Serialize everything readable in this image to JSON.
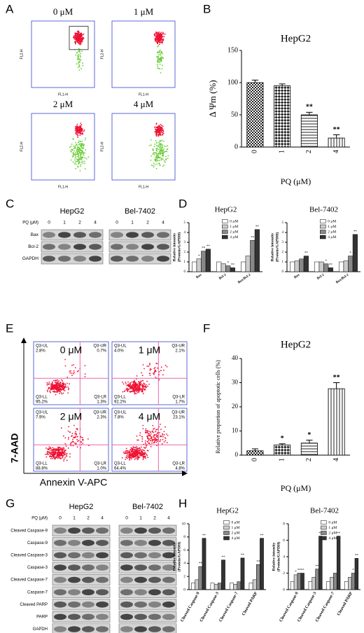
{
  "panel_labels": [
    "A",
    "B",
    "C",
    "D",
    "E",
    "F",
    "G",
    "H"
  ],
  "flow_a": {
    "doses": [
      "0 μM",
      "1 μM",
      "2 μM",
      "4 μM"
    ],
    "y_axis": "FL2-H",
    "x_axis": "FL1-H"
  },
  "blot_c": {
    "groups": [
      "HepG2",
      "Bel-7402"
    ],
    "dose_label": "PQ (μM)",
    "doses": [
      "0",
      "1",
      "2",
      "4",
      "0",
      "1",
      "2",
      "4"
    ],
    "rows": [
      "Bax",
      "Bcl-2",
      "GAPDH"
    ]
  },
  "flow_e": {
    "doses": [
      "0 μM",
      "1 μM",
      "2 μM",
      "4 μM"
    ],
    "y_axis": "7-AAD",
    "x_axis": "Annexin V-APC",
    "quadrants": [
      "Q3-UL",
      "Q3-UR",
      "Q3-LL",
      "Q3-LR"
    ],
    "percents": [
      [
        "2.8%",
        "0.7%",
        "95.2%",
        "1.3%"
      ],
      [
        "4.0%",
        "2.1%",
        "92.2%",
        "1.7%"
      ],
      [
        "7.9%",
        "2.3%",
        "88.8%",
        "1.0%"
      ],
      [
        "7.8%",
        "23.1%",
        "64.4%",
        "4.8%"
      ]
    ]
  },
  "blot_g": {
    "groups": [
      "HepG2",
      "Bel-7402"
    ],
    "dose_label": "PQ (μM)",
    "doses": [
      "0",
      "1",
      "2",
      "4",
      "0",
      "1",
      "2",
      "4"
    ],
    "rows": [
      "Cleaved Caspase-9",
      "Caspase-9",
      "Cleaved Caspase-3",
      "Caspase-3",
      "Cleaved Caspase-7",
      "Caspase-7",
      "Cleaved PARP",
      "PARP",
      "GAPDH"
    ]
  },
  "chart_data": [
    {
      "type": "bar",
      "title": "HepG2",
      "y_label": [
        "Δ Ψm (%)"
      ],
      "x_label": "PQ (μM)",
      "categories": [
        "0",
        "1",
        "2",
        "4"
      ],
      "values": [
        100,
        95,
        50,
        14
      ],
      "errors": [
        4,
        3,
        4,
        5
      ],
      "annotations": [
        null,
        null,
        "**",
        "**"
      ],
      "ylim": [
        0,
        150
      ],
      "yticks": [
        0,
        50,
        100,
        150
      ]
    },
    {
      "type": "bar",
      "title": "HepG2",
      "y_label": [
        "Relative intensity",
        "(Protein/GAPDH)"
      ],
      "categories": [
        "Bax",
        "Bcl-2",
        "Bax/Bcl-2"
      ],
      "ylim": [
        0,
        5
      ],
      "yticks": [
        0,
        1,
        2,
        3,
        4,
        5
      ],
      "series": [
        {
          "name": "0 μM",
          "color": "#ffffff",
          "values": [
            1,
            1,
            1
          ],
          "annotations": [
            null,
            null,
            null
          ]
        },
        {
          "name": "1 μM",
          "color": "#cccccc",
          "values": [
            1.3,
            0.8,
            1.6
          ],
          "annotations": [
            "*",
            null,
            null
          ]
        },
        {
          "name": "2 μM",
          "color": "#888888",
          "values": [
            2.1,
            0.6,
            3.2
          ],
          "annotations": [
            "**",
            "*",
            "**"
          ]
        },
        {
          "name": "4 μM",
          "color": "#333333",
          "values": [
            2.3,
            0.4,
            4.3
          ],
          "annotations": [
            "**",
            "**",
            "**"
          ]
        }
      ]
    },
    {
      "type": "bar",
      "title": "Bel-7402",
      "y_label": [
        "Relative intensity",
        "(Protein/GAPDH)"
      ],
      "categories": [
        "Bax",
        "Bcl-2",
        "Bax/Bcl-2"
      ],
      "ylim": [
        0,
        5
      ],
      "yticks": [
        0,
        1,
        2,
        3,
        4,
        5
      ],
      "series": [
        {
          "name": "0 μM",
          "color": "#ffffff",
          "values": [
            1,
            1,
            1
          ],
          "annotations": [
            null,
            null,
            null
          ]
        },
        {
          "name": "1 μM",
          "color": "#cccccc",
          "values": [
            1.1,
            1,
            1.1
          ],
          "annotations": [
            null,
            null,
            null
          ]
        },
        {
          "name": "2 μM",
          "color": "#888888",
          "values": [
            1.3,
            0.8,
            1.6
          ],
          "annotations": [
            null,
            "*",
            "*"
          ]
        },
        {
          "name": "4 μM",
          "color": "#333333",
          "values": [
            1.6,
            0.4,
            3.8
          ],
          "annotations": [
            "**",
            "**",
            "**"
          ]
        }
      ]
    },
    {
      "type": "bar",
      "title": "HepG2",
      "y_label": [
        "Relative proportion of apoptotic cells (%)"
      ],
      "x_label": "PQ (μM)",
      "categories": [
        "0",
        "1",
        "2",
        "4"
      ],
      "values": [
        1.8,
        4.2,
        5,
        27.5
      ],
      "errors": [
        0.8,
        0.5,
        1.2,
        2.5
      ],
      "annotations": [
        null,
        "*",
        "*",
        "**"
      ],
      "ylim": [
        0,
        40
      ],
      "yticks": [
        0,
        10,
        20,
        30,
        40
      ]
    },
    {
      "type": "bar",
      "title": "HepG2",
      "y_label": [
        "Relative intensity",
        "(Protein/GAPDH)"
      ],
      "categories": [
        "Cleaved Caspase-9",
        "Cleaved Caspase-3",
        "Cleaved Caspase-7",
        "Cleaved PARP"
      ],
      "ylim": [
        0,
        10
      ],
      "yticks": [
        0,
        2,
        4,
        6,
        8,
        10
      ],
      "series": [
        {
          "name": "0 μM",
          "color": "#ffffff",
          "values": [
            1,
            1,
            1,
            1
          ],
          "annotations": [
            null,
            null,
            null,
            null
          ]
        },
        {
          "name": "1 μM",
          "color": "#cccccc",
          "values": [
            1.5,
            0.8,
            0.8,
            1.5
          ],
          "annotations": [
            null,
            null,
            null,
            null
          ]
        },
        {
          "name": "2 μM",
          "color": "#888888",
          "values": [
            3.5,
            1,
            1.2,
            3.8
          ],
          "annotations": [
            "**",
            null,
            null,
            "**"
          ]
        },
        {
          "name": "4 μM",
          "color": "#333333",
          "values": [
            7.8,
            4.5,
            4.8,
            7.8
          ],
          "annotations": [
            "**",
            "**",
            "**",
            "**"
          ]
        }
      ]
    },
    {
      "type": "bar",
      "title": "Bel-7402",
      "y_label": [
        "Relative intensity",
        "(Protein/GAPDH)"
      ],
      "categories": [
        "Cleaved Caspase-9",
        "Cleaved Caspase-3",
        "Cleaved Caspase-7",
        "Cleaved PARP"
      ],
      "ylim": [
        0,
        8
      ],
      "yticks": [
        0,
        2,
        4,
        6,
        8
      ],
      "series": [
        {
          "name": "0 μM",
          "color": "#ffffff",
          "values": [
            1,
            1,
            1,
            1
          ],
          "annotations": [
            null,
            null,
            null,
            null
          ]
        },
        {
          "name": "1 μM",
          "color": "#cccccc",
          "values": [
            1.8,
            1.5,
            1.5,
            1.5
          ],
          "annotations": [
            "*",
            null,
            null,
            null
          ]
        },
        {
          "name": "2 μM",
          "color": "#888888",
          "values": [
            2,
            2.5,
            2,
            2
          ],
          "annotations": [
            "**",
            "**",
            null,
            "*"
          ]
        },
        {
          "name": "4 μM",
          "color": "#333333",
          "values": [
            2,
            6.5,
            6.5,
            3.8
          ],
          "annotations": [
            "**",
            "**",
            "**",
            "**"
          ]
        }
      ]
    }
  ]
}
